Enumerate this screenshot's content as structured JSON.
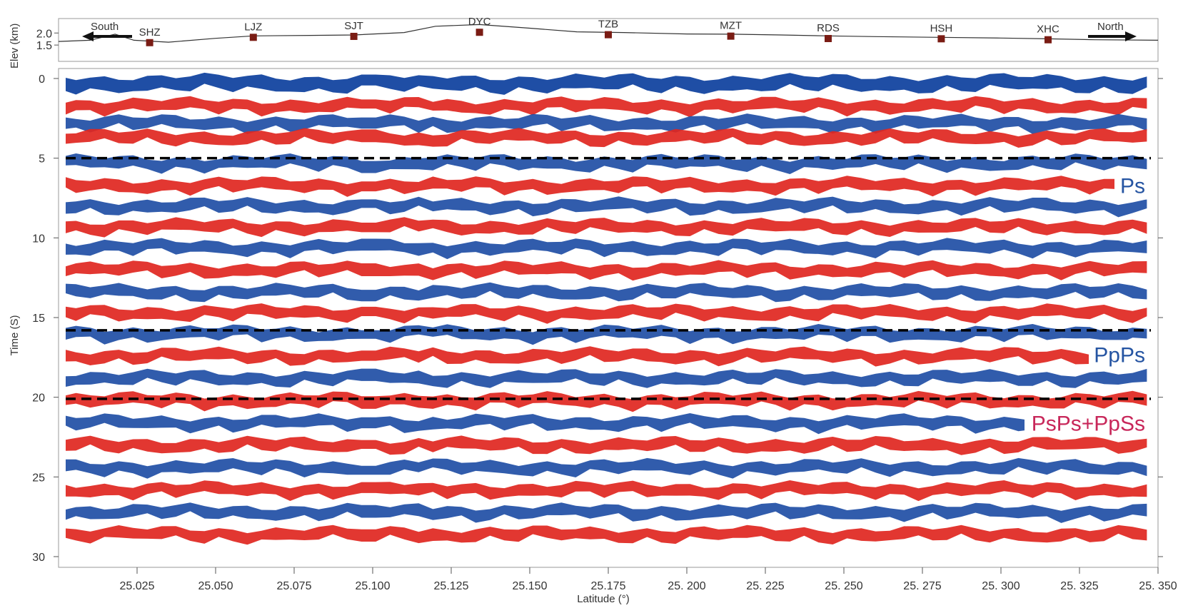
{
  "chart_data": {
    "type": "heatmap",
    "title": "",
    "xlabel": "Latitude (°)",
    "ylabel": "Time (S)",
    "elev_label": "Elev (km)",
    "xlim": [
      25.0,
      25.35
    ],
    "ylim": [
      0,
      30
    ],
    "elev_lim": [
      1.0,
      2.6
    ],
    "x_ticks": [
      {
        "value": 25.025,
        "label": "25.025"
      },
      {
        "value": 25.05,
        "label": "25.050"
      },
      {
        "value": 25.075,
        "label": "25.075"
      },
      {
        "value": 25.1,
        "label": "25.100"
      },
      {
        "value": 25.125,
        "label": "25.125"
      },
      {
        "value": 25.15,
        "label": "25.150"
      },
      {
        "value": 25.175,
        "label": "25.175"
      },
      {
        "value": 25.2,
        "label": "25. 200"
      },
      {
        "value": 25.225,
        "label": "25. 225"
      },
      {
        "value": 25.25,
        "label": "25. 250"
      },
      {
        "value": 25.275,
        "label": "25. 275"
      },
      {
        "value": 25.3,
        "label": "25. 300"
      },
      {
        "value": 25.325,
        "label": "25. 325"
      },
      {
        "value": 25.35,
        "label": "25. 350"
      }
    ],
    "y_ticks": [
      {
        "value": 0,
        "label": "0"
      },
      {
        "value": 5,
        "label": "5"
      },
      {
        "value": 10,
        "label": "10"
      },
      {
        "value": 15,
        "label": "15"
      },
      {
        "value": 20,
        "label": "20"
      },
      {
        "value": 25,
        "label": "25"
      },
      {
        "value": 30,
        "label": "30"
      }
    ],
    "elev_ticks": [
      {
        "value": 1.5,
        "label": "1.5"
      },
      {
        "value": 2.0,
        "label": "2.0"
      }
    ],
    "elevation_profile": [
      {
        "lat": 25.0,
        "elev": 1.65
      },
      {
        "lat": 25.01,
        "elev": 1.7
      },
      {
        "lat": 25.018,
        "elev": 1.95
      },
      {
        "lat": 25.024,
        "elev": 1.7
      },
      {
        "lat": 25.035,
        "elev": 1.62
      },
      {
        "lat": 25.05,
        "elev": 1.78
      },
      {
        "lat": 25.062,
        "elev": 1.88
      },
      {
        "lat": 25.08,
        "elev": 1.9
      },
      {
        "lat": 25.094,
        "elev": 1.92
      },
      {
        "lat": 25.11,
        "elev": 2.02
      },
      {
        "lat": 25.12,
        "elev": 2.28
      },
      {
        "lat": 25.134,
        "elev": 2.35
      },
      {
        "lat": 25.15,
        "elev": 2.2
      },
      {
        "lat": 25.165,
        "elev": 2.05
      },
      {
        "lat": 25.18,
        "elev": 2.02
      },
      {
        "lat": 25.2,
        "elev": 1.96
      },
      {
        "lat": 25.214,
        "elev": 1.95
      },
      {
        "lat": 25.23,
        "elev": 1.92
      },
      {
        "lat": 25.245,
        "elev": 1.88
      },
      {
        "lat": 25.26,
        "elev": 1.85
      },
      {
        "lat": 25.28,
        "elev": 1.82
      },
      {
        "lat": 25.3,
        "elev": 1.79
      },
      {
        "lat": 25.315,
        "elev": 1.76
      },
      {
        "lat": 25.33,
        "elev": 1.72
      },
      {
        "lat": 25.35,
        "elev": 1.7
      }
    ],
    "stations": [
      {
        "name": "SHZ",
        "lat": 25.029,
        "elev": 1.6
      },
      {
        "name": "LJZ",
        "lat": 25.062,
        "elev": 1.82
      },
      {
        "name": "SJT",
        "lat": 25.094,
        "elev": 1.86
      },
      {
        "name": "DYC",
        "lat": 25.134,
        "elev": 2.03
      },
      {
        "name": "TZB",
        "lat": 25.175,
        "elev": 1.93
      },
      {
        "name": "MZT",
        "lat": 25.214,
        "elev": 1.87
      },
      {
        "name": "RDS",
        "lat": 25.245,
        "elev": 1.77
      },
      {
        "name": "HSH",
        "lat": 25.281,
        "elev": 1.76
      },
      {
        "name": "XHC",
        "lat": 25.315,
        "elev": 1.72
      }
    ],
    "direction_labels": {
      "south": "South",
      "north": "North"
    },
    "phase_lines": [
      {
        "name": "Ps",
        "time": 5.0
      },
      {
        "name": "PpPs",
        "time": 15.8
      },
      {
        "name": "PsPs+PpSs",
        "time": 20.1
      }
    ],
    "phase_labels": [
      {
        "text": "Ps",
        "time": 6.7,
        "color": "#2554a2"
      },
      {
        "text": "PpPs",
        "time": 17.3,
        "color": "#2554a2"
      },
      {
        "text": "PsPs+PpSs",
        "time": 21.6,
        "color": "#c8275a"
      }
    ],
    "polarity_colors": {
      "positive": "#1f4ea5",
      "negative": "#e0261f"
    },
    "reflector_bands": [
      {
        "time": 0.3,
        "polarity": "positive",
        "lat_start": 25.001,
        "lat_end": 25.35
      },
      {
        "time": 1.7,
        "polarity": "negative",
        "lat_start": 25.001,
        "lat_end": 25.35
      },
      {
        "time": 2.8,
        "polarity": "positive",
        "lat_start": 25.001,
        "lat_end": 25.35
      },
      {
        "time": 3.7,
        "polarity": "negative",
        "lat_start": 25.001,
        "lat_end": 25.35
      },
      {
        "time": 5.3,
        "polarity": "positive",
        "lat_start": 25.001,
        "lat_end": 25.35
      },
      {
        "time": 6.7,
        "polarity": "negative",
        "lat_start": 25.001,
        "lat_end": 25.35
      },
      {
        "time": 8.0,
        "polarity": "positive",
        "lat_start": 25.001,
        "lat_end": 25.35
      },
      {
        "time": 9.3,
        "polarity": "negative",
        "lat_start": 25.001,
        "lat_end": 25.35
      },
      {
        "time": 10.6,
        "polarity": "positive",
        "lat_start": 25.001,
        "lat_end": 25.35
      },
      {
        "time": 12.0,
        "polarity": "negative",
        "lat_start": 25.001,
        "lat_end": 25.35
      },
      {
        "time": 13.4,
        "polarity": "positive",
        "lat_start": 25.001,
        "lat_end": 25.35
      },
      {
        "time": 14.7,
        "polarity": "negative",
        "lat_start": 25.001,
        "lat_end": 25.35
      },
      {
        "time": 16.0,
        "polarity": "positive",
        "lat_start": 25.001,
        "lat_end": 25.35
      },
      {
        "time": 17.4,
        "polarity": "negative",
        "lat_start": 25.001,
        "lat_end": 25.35
      },
      {
        "time": 18.8,
        "polarity": "positive",
        "lat_start": 25.001,
        "lat_end": 25.35
      },
      {
        "time": 20.2,
        "polarity": "negative",
        "lat_start": 25.001,
        "lat_end": 25.35
      },
      {
        "time": 21.6,
        "polarity": "positive",
        "lat_start": 25.001,
        "lat_end": 25.35
      },
      {
        "time": 23.0,
        "polarity": "negative",
        "lat_start": 25.001,
        "lat_end": 25.35
      },
      {
        "time": 24.4,
        "polarity": "positive",
        "lat_start": 25.001,
        "lat_end": 25.35
      },
      {
        "time": 25.8,
        "polarity": "negative",
        "lat_start": 25.001,
        "lat_end": 25.35
      },
      {
        "time": 27.2,
        "polarity": "positive",
        "lat_start": 25.001,
        "lat_end": 25.35
      },
      {
        "time": 28.6,
        "polarity": "negative",
        "lat_start": 25.001,
        "lat_end": 25.35
      }
    ],
    "grid": false
  }
}
